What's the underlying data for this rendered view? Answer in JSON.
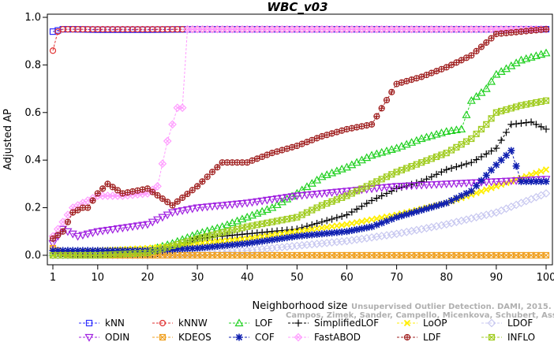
{
  "chart_data": {
    "type": "line",
    "title": "WBC_v03",
    "xlabel": "Neighborhood size",
    "ylabel": "Adjusted AP",
    "xlim": [
      1,
      100
    ],
    "ylim": [
      -0.02,
      1.0
    ],
    "xticks": [
      "1",
      "10",
      "20",
      "30",
      "40",
      "50",
      "60",
      "70",
      "80",
      "90",
      "100"
    ],
    "yticks": [
      "0.0",
      "0.2",
      "0.4",
      "0.6",
      "0.8",
      "1.0"
    ],
    "grid": false,
    "legend_position": "bottom",
    "series": [
      {
        "name": "kNN",
        "color": "#3030ff",
        "marker": "square",
        "points": [
          [
            1,
            0.94
          ],
          [
            3,
            0.95
          ],
          [
            5,
            0.95
          ],
          [
            10,
            0.948
          ],
          [
            20,
            0.948
          ],
          [
            30,
            0.95
          ],
          [
            40,
            0.95
          ],
          [
            50,
            0.95
          ],
          [
            60,
            0.95
          ],
          [
            70,
            0.95
          ],
          [
            80,
            0.95
          ],
          [
            90,
            0.95
          ],
          [
            100,
            0.95
          ]
        ]
      },
      {
        "name": "kNNW",
        "color": "#e03030",
        "marker": "circle",
        "points": [
          [
            1,
            0.86
          ],
          [
            2,
            0.94
          ],
          [
            3,
            0.95
          ],
          [
            10,
            0.95
          ],
          [
            20,
            0.95
          ],
          [
            40,
            0.95
          ],
          [
            60,
            0.95
          ],
          [
            80,
            0.95
          ],
          [
            100,
            0.95
          ]
        ]
      },
      {
        "name": "LOF",
        "color": "#20d020",
        "marker": "triangle",
        "points": [
          [
            1,
            0.01
          ],
          [
            10,
            0.01
          ],
          [
            20,
            0.02
          ],
          [
            25,
            0.05
          ],
          [
            30,
            0.09
          ],
          [
            35,
            0.12
          ],
          [
            40,
            0.16
          ],
          [
            45,
            0.2
          ],
          [
            50,
            0.26
          ],
          [
            55,
            0.33
          ],
          [
            60,
            0.37
          ],
          [
            65,
            0.42
          ],
          [
            70,
            0.45
          ],
          [
            75,
            0.49
          ],
          [
            80,
            0.52
          ],
          [
            83,
            0.53
          ],
          [
            85,
            0.65
          ],
          [
            88,
            0.7
          ],
          [
            90,
            0.76
          ],
          [
            95,
            0.82
          ],
          [
            100,
            0.85
          ]
        ]
      },
      {
        "name": "SimplifiedLOF",
        "color": "#000000",
        "marker": "plus",
        "points": [
          [
            1,
            0.01
          ],
          [
            10,
            0.0
          ],
          [
            20,
            0.0
          ],
          [
            25,
            0.02
          ],
          [
            30,
            0.07
          ],
          [
            40,
            0.09
          ],
          [
            50,
            0.11
          ],
          [
            55,
            0.14
          ],
          [
            60,
            0.17
          ],
          [
            65,
            0.23
          ],
          [
            70,
            0.28
          ],
          [
            75,
            0.31
          ],
          [
            80,
            0.36
          ],
          [
            85,
            0.39
          ],
          [
            90,
            0.45
          ],
          [
            93,
            0.55
          ],
          [
            97,
            0.56
          ],
          [
            100,
            0.53
          ]
        ]
      },
      {
        "name": "LoOP",
        "color": "#ffee00",
        "marker": "x",
        "points": [
          [
            1,
            0.0
          ],
          [
            10,
            0.02
          ],
          [
            20,
            0.03
          ],
          [
            30,
            0.05
          ],
          [
            40,
            0.07
          ],
          [
            50,
            0.1
          ],
          [
            60,
            0.13
          ],
          [
            70,
            0.17
          ],
          [
            80,
            0.22
          ],
          [
            90,
            0.29
          ],
          [
            100,
            0.36
          ]
        ]
      },
      {
        "name": "LDOF",
        "color": "#c8c8f0",
        "marker": "diamond",
        "points": [
          [
            1,
            0.0
          ],
          [
            10,
            0.0
          ],
          [
            20,
            0.0
          ],
          [
            30,
            0.01
          ],
          [
            40,
            0.02
          ],
          [
            50,
            0.04
          ],
          [
            60,
            0.06
          ],
          [
            70,
            0.09
          ],
          [
            80,
            0.13
          ],
          [
            90,
            0.18
          ],
          [
            100,
            0.26
          ]
        ]
      },
      {
        "name": "ODIN",
        "color": "#a020e0",
        "marker": "triangle-down",
        "points": [
          [
            1,
            0.05
          ],
          [
            3,
            0.11
          ],
          [
            6,
            0.08
          ],
          [
            8,
            0.09
          ],
          [
            10,
            0.1
          ],
          [
            20,
            0.13
          ],
          [
            25,
            0.18
          ],
          [
            30,
            0.2
          ],
          [
            40,
            0.22
          ],
          [
            50,
            0.25
          ],
          [
            60,
            0.27
          ],
          [
            70,
            0.29
          ],
          [
            80,
            0.3
          ],
          [
            90,
            0.31
          ],
          [
            100,
            0.32
          ]
        ]
      },
      {
        "name": "KDEOS",
        "color": "#f0a020",
        "marker": "box-x",
        "points": [
          [
            1,
            0.03
          ],
          [
            3,
            0.01
          ],
          [
            5,
            0.0
          ],
          [
            10,
            0.0
          ],
          [
            20,
            0.0
          ],
          [
            40,
            0.0
          ],
          [
            60,
            0.0
          ],
          [
            80,
            0.0
          ],
          [
            100,
            0.0
          ]
        ]
      },
      {
        "name": "COF",
        "color": "#1020b0",
        "marker": "star",
        "points": [
          [
            1,
            0.02
          ],
          [
            10,
            0.02
          ],
          [
            20,
            0.02
          ],
          [
            30,
            0.03
          ],
          [
            40,
            0.05
          ],
          [
            50,
            0.08
          ],
          [
            60,
            0.1
          ],
          [
            65,
            0.12
          ],
          [
            70,
            0.16
          ],
          [
            75,
            0.19
          ],
          [
            80,
            0.22
          ],
          [
            85,
            0.27
          ],
          [
            90,
            0.38
          ],
          [
            93,
            0.44
          ],
          [
            95,
            0.31
          ],
          [
            100,
            0.31
          ]
        ]
      },
      {
        "name": "FastABOD",
        "color": "#ff9cff",
        "marker": "diamond-x",
        "points": [
          [
            1,
            0.08
          ],
          [
            5,
            0.2
          ],
          [
            10,
            0.25
          ],
          [
            15,
            0.25
          ],
          [
            20,
            0.26
          ],
          [
            22,
            0.29
          ],
          [
            24,
            0.48
          ],
          [
            26,
            0.62
          ],
          [
            27,
            0.62
          ],
          [
            28,
            0.95
          ],
          [
            100,
            0.95
          ]
        ]
      },
      {
        "name": "LDF",
        "color": "#a02020",
        "marker": "circle-plus",
        "points": [
          [
            1,
            0.07
          ],
          [
            3,
            0.1
          ],
          [
            5,
            0.18
          ],
          [
            7,
            0.2
          ],
          [
            8,
            0.2
          ],
          [
            10,
            0.26
          ],
          [
            12,
            0.3
          ],
          [
            15,
            0.26
          ],
          [
            20,
            0.28
          ],
          [
            25,
            0.21
          ],
          [
            30,
            0.29
          ],
          [
            35,
            0.39
          ],
          [
            40,
            0.39
          ],
          [
            45,
            0.43
          ],
          [
            50,
            0.46
          ],
          [
            55,
            0.5
          ],
          [
            60,
            0.53
          ],
          [
            65,
            0.55
          ],
          [
            70,
            0.72
          ],
          [
            75,
            0.75
          ],
          [
            80,
            0.79
          ],
          [
            85,
            0.84
          ],
          [
            90,
            0.93
          ],
          [
            100,
            0.95
          ]
        ]
      },
      {
        "name": "INFLO",
        "color": "#a0cc20",
        "marker": "box-x",
        "points": [
          [
            1,
            0.0
          ],
          [
            10,
            0.0
          ],
          [
            20,
            0.01
          ],
          [
            30,
            0.07
          ],
          [
            40,
            0.12
          ],
          [
            50,
            0.16
          ],
          [
            55,
            0.21
          ],
          [
            60,
            0.25
          ],
          [
            65,
            0.3
          ],
          [
            70,
            0.35
          ],
          [
            75,
            0.39
          ],
          [
            80,
            0.43
          ],
          [
            85,
            0.49
          ],
          [
            88,
            0.55
          ],
          [
            90,
            0.6
          ],
          [
            95,
            0.63
          ],
          [
            100,
            0.65
          ]
        ]
      }
    ]
  },
  "watermark": {
    "line1": "Unsupervised Outlier Detection. DAMI, 2015.",
    "line2": "Campos, Zimek, Sander, Campello, Micenkova, Schubert, Assent, Houle"
  }
}
